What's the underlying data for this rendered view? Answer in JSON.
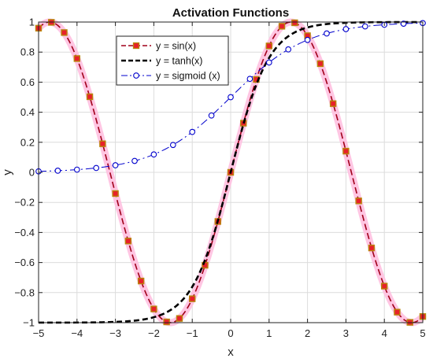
{
  "chart_data": {
    "type": "line",
    "title": "Activation Functions",
    "xlabel": "x",
    "ylabel": "y",
    "xlim": [
      -5,
      5
    ],
    "ylim": [
      -1,
      1
    ],
    "x_ticks": [
      "−5",
      "−4",
      "−3",
      "−2",
      "−1",
      "0",
      "1",
      "2",
      "3",
      "4",
      "5"
    ],
    "y_ticks": [
      "−1",
      "−0.8",
      "−0.6",
      "−0.4",
      "−0.2",
      "0",
      "0.2",
      "0.4",
      "0.6",
      "0.8",
      "1"
    ],
    "grid": true,
    "legend_position": "top-center",
    "series": [
      {
        "name": "y = sin(x)",
        "color": "#a0001a",
        "marker": "square",
        "marker_edge_color": "#b8860b",
        "marker_face_color": "#e8202a",
        "highlight_color": "#ffc0e0",
        "line_style": "dashed",
        "x": [
          -5,
          -4.667,
          -4.333,
          -4,
          -3.667,
          -3.333,
          -3,
          -2.667,
          -2.333,
          -2,
          -1.667,
          -1.333,
          -1,
          -0.667,
          -0.333,
          0,
          0.333,
          0.667,
          1,
          1.333,
          1.667,
          2,
          2.333,
          2.667,
          3,
          3.333,
          3.667,
          4,
          4.333,
          4.667,
          5
        ],
        "values": [
          0.959,
          0.998,
          0.93,
          0.757,
          0.503,
          0.19,
          -0.141,
          -0.457,
          -0.723,
          -0.909,
          -0.995,
          -0.972,
          -0.841,
          -0.618,
          -0.327,
          0,
          0.327,
          0.618,
          0.841,
          0.972,
          0.995,
          0.909,
          0.723,
          0.457,
          0.141,
          -0.19,
          -0.503,
          -0.757,
          -0.93,
          -0.998,
          -0.959
        ]
      },
      {
        "name": "y = tanh(x)",
        "color": "#000000",
        "line_style": "dashed",
        "x": [
          -5,
          -4.5,
          -4,
          -3.5,
          -3,
          -2.5,
          -2,
          -1.75,
          -1.5,
          -1.25,
          -1,
          -0.75,
          -0.5,
          -0.25,
          0,
          0.25,
          0.5,
          0.75,
          1,
          1.25,
          1.5,
          1.75,
          2,
          2.5,
          3,
          3.5,
          4,
          4.5,
          5
        ],
        "values": [
          -0.9999,
          -0.9998,
          -0.9993,
          -0.9982,
          -0.9951,
          -0.9866,
          -0.964,
          -0.941,
          -0.905,
          -0.848,
          -0.762,
          -0.635,
          -0.462,
          -0.245,
          0,
          0.245,
          0.462,
          0.635,
          0.762,
          0.848,
          0.905,
          0.941,
          0.964,
          0.9866,
          0.9951,
          0.9982,
          0.9993,
          0.9998,
          0.9999
        ]
      },
      {
        "name": "y = sigmoid (x)",
        "color": "#0000cc",
        "marker": "circle",
        "line_style": "dashdot",
        "x": [
          -5,
          -4.5,
          -4,
          -3.5,
          -3,
          -2.5,
          -2,
          -1.5,
          -1,
          -0.5,
          0,
          0.5,
          1,
          1.5,
          2,
          2.5,
          3,
          3.5,
          4,
          4.5,
          5
        ],
        "values": [
          0.0067,
          0.011,
          0.018,
          0.029,
          0.047,
          0.076,
          0.119,
          0.182,
          0.269,
          0.378,
          0.5,
          0.622,
          0.731,
          0.818,
          0.881,
          0.924,
          0.953,
          0.971,
          0.982,
          0.989,
          0.993
        ]
      }
    ]
  }
}
